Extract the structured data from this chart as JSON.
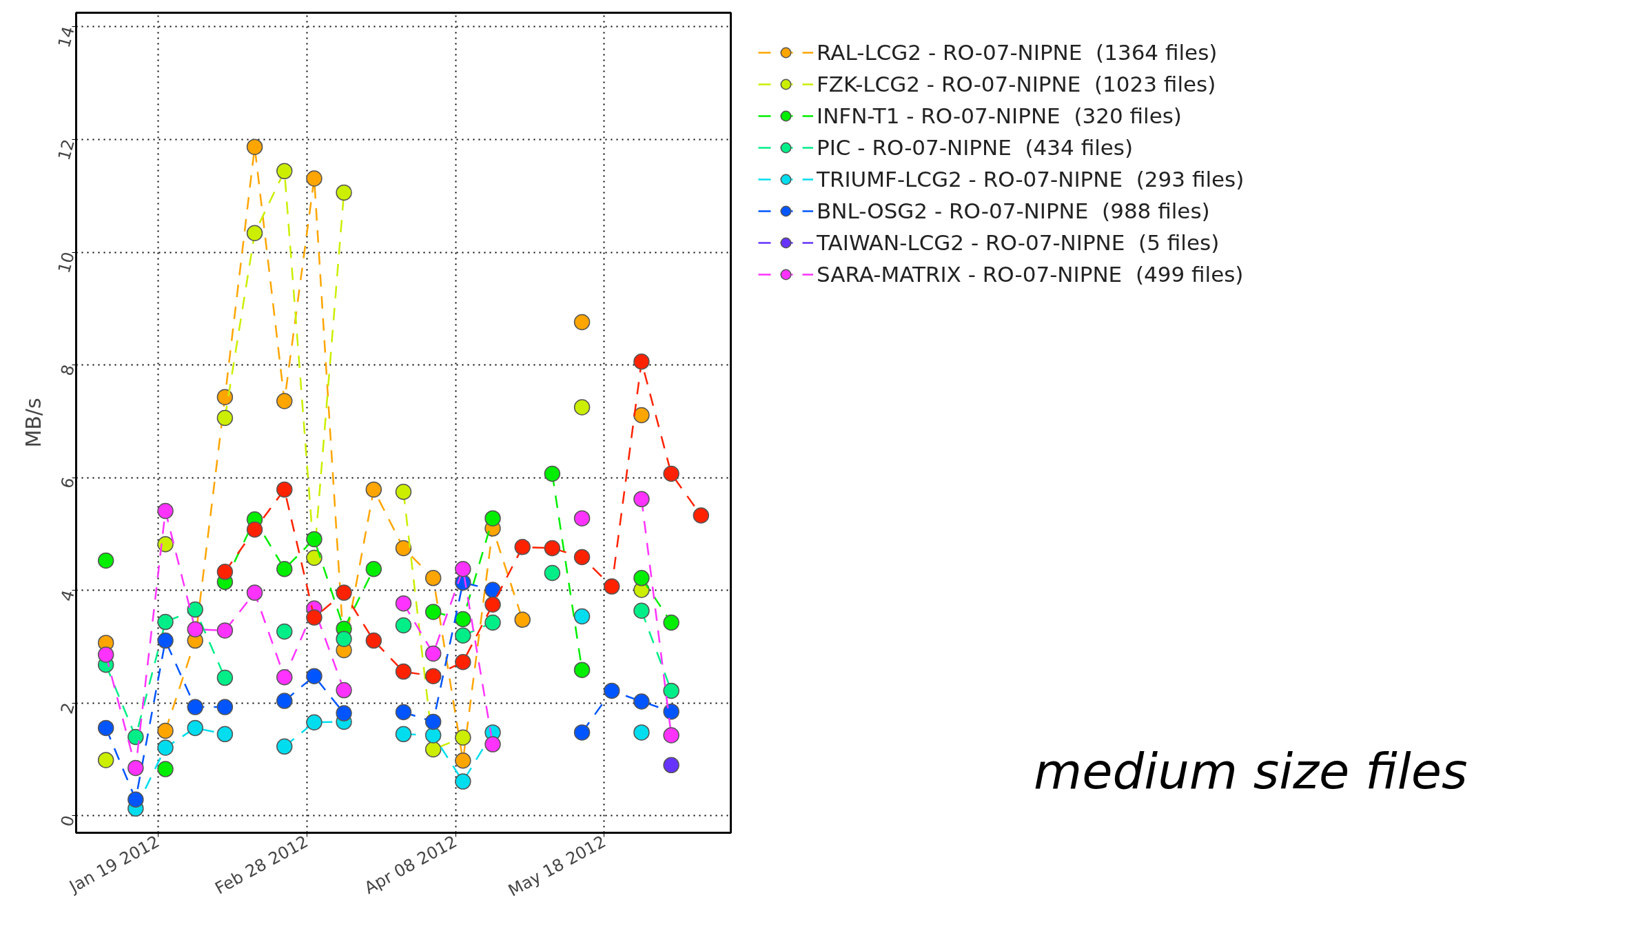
{
  "chart_data": {
    "type": "line",
    "ylabel": "MB/s",
    "x": [
      "2012-01-05",
      "2012-01-13",
      "2012-01-21",
      "2012-01-29",
      "2012-02-06",
      "2012-02-14",
      "2012-02-22",
      "2012-03-01",
      "2012-03-09",
      "2012-03-17",
      "2012-03-25",
      "2012-04-02",
      "2012-04-10",
      "2012-04-18",
      "2012-04-26",
      "2012-05-04",
      "2012-05-12",
      "2012-05-20",
      "2012-05-28",
      "2012-06-05",
      "2012-06-13"
    ],
    "series": [
      {
        "name": "RAL-LCG2 - RO-07-NIPNE  (1364 files)",
        "color": "#ffa500",
        "values": [
          3.07,
          null,
          1.51,
          3.11,
          7.43,
          11.87,
          7.36,
          11.31,
          2.94,
          5.79,
          4.75,
          4.22,
          0.98,
          5.1,
          3.48,
          null,
          8.76,
          null,
          7.11,
          null,
          null
        ]
      },
      {
        "name": "FZK-LCG2 - RO-07-NIPNE  (1023 files)",
        "color": "#ccee00",
        "values": [
          0.99,
          null,
          4.82,
          null,
          7.06,
          10.34,
          11.44,
          4.58,
          11.06,
          null,
          5.75,
          1.18,
          1.39,
          null,
          null,
          null,
          7.25,
          null,
          4.01,
          null,
          null
        ]
      },
      {
        "name": "INFN-T1 - RO-07-NIPNE  (320 files)",
        "color": "#00ee00",
        "values": [
          4.53,
          null,
          0.83,
          null,
          4.15,
          5.26,
          4.38,
          4.91,
          3.32,
          4.38,
          null,
          3.62,
          3.49,
          5.28,
          null,
          6.07,
          2.59,
          null,
          4.22,
          3.43,
          null
        ]
      },
      {
        "name": "PIC - RO-07-NIPNE  (434 files)",
        "color": "#00ee88",
        "values": [
          2.68,
          1.4,
          3.44,
          3.66,
          2.45,
          null,
          3.27,
          null,
          3.14,
          null,
          3.38,
          null,
          3.2,
          3.43,
          null,
          4.31,
          null,
          null,
          3.64,
          2.22,
          null
        ]
      },
      {
        "name": "TRIUMF-LCG2 - RO-07-NIPNE  (293 files)",
        "color": "#00ddee",
        "values": [
          null,
          0.13,
          1.21,
          1.56,
          1.45,
          null,
          1.23,
          1.66,
          1.67,
          null,
          1.45,
          1.43,
          0.61,
          1.48,
          null,
          null,
          3.54,
          null,
          1.48,
          null,
          null
        ]
      },
      {
        "name": "BNL-OSG2 - RO-07-NIPNE  (988 files)",
        "color": "#0055ff",
        "values": [
          1.56,
          0.29,
          3.11,
          1.93,
          1.93,
          null,
          2.04,
          2.48,
          1.82,
          null,
          1.84,
          1.67,
          4.14,
          4.01,
          null,
          null,
          1.48,
          2.22,
          2.03,
          1.85,
          null
        ]
      },
      {
        "name": "TAIWAN-LCG2 - RO-07-NIPNE  (5 files)",
        "color": "#6633ff",
        "values": [
          null,
          null,
          null,
          null,
          null,
          null,
          null,
          null,
          null,
          null,
          null,
          null,
          null,
          null,
          null,
          null,
          null,
          null,
          null,
          0.9,
          null
        ]
      },
      {
        "name": "SARA-MATRIX - RO-07-NIPNE  (499 files)",
        "color": "#ff33ff",
        "values": [
          2.86,
          0.85,
          5.41,
          3.31,
          3.29,
          3.96,
          2.46,
          3.68,
          2.23,
          null,
          3.77,
          2.88,
          4.38,
          1.27,
          null,
          null,
          5.28,
          null,
          5.62,
          1.43,
          null
        ]
      },
      {
        "color": "#ff2200",
        "values": [
          null,
          null,
          null,
          null,
          4.33,
          5.08,
          5.79,
          3.52,
          3.96,
          3.11,
          2.56,
          2.48,
          2.73,
          3.75,
          4.77,
          4.75,
          4.59,
          4.07,
          8.06,
          6.07,
          5.33
        ]
      }
    ],
    "xlim": [
      "2011-12-28",
      "2012-06-21"
    ],
    "xticks": [
      {
        "value": "2012-01-19",
        "label": "Jan 19 2012"
      },
      {
        "value": "2012-02-28",
        "label": "Feb 28 2012"
      },
      {
        "value": "2012-04-08",
        "label": "Apr 08 2012"
      },
      {
        "value": "2012-05-18",
        "label": "May 18 2012"
      }
    ],
    "ylim": [
      -0.3,
      14.25
    ],
    "yticks": [
      0,
      2,
      4,
      6,
      8,
      10,
      12,
      14
    ],
    "grid": true,
    "legend": "right",
    "marker": "circle",
    "line_style": "dashed",
    "annotations": [
      "medium size files"
    ]
  }
}
